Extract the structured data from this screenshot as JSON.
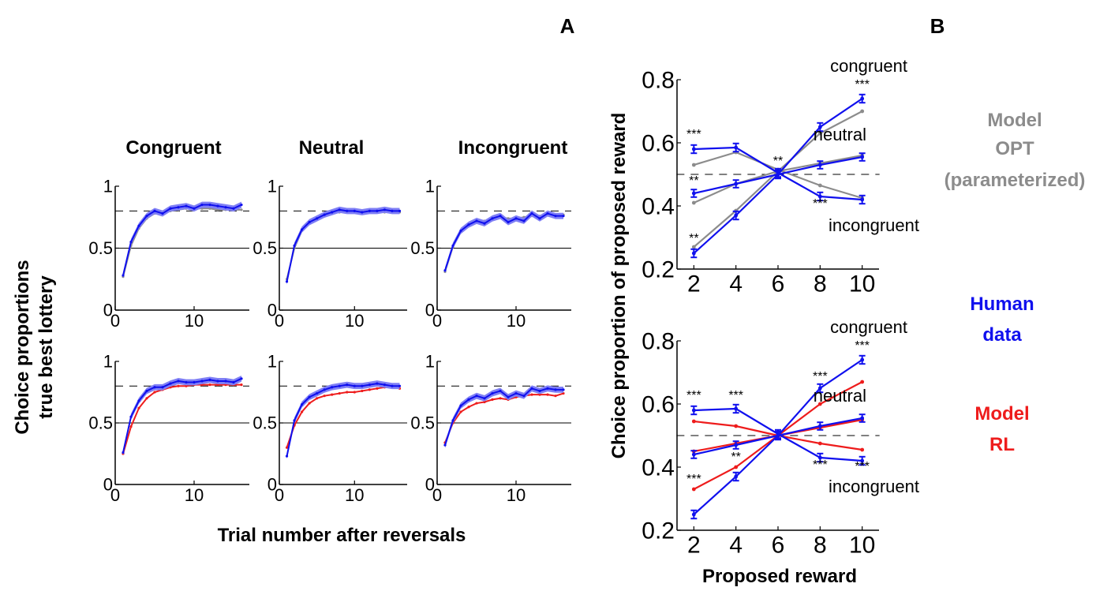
{
  "figure": {
    "panel_labels": {
      "a": "A",
      "b": "B"
    },
    "panel_a": {
      "column_titles": [
        "Congruent",
        "Neutral",
        "Incongruent"
      ],
      "ylabel_line1": "Choice proportions",
      "ylabel_line2": "true best lottery",
      "xlabel": "Trial number after reversals"
    },
    "panel_b": {
      "ylabel": "Choice proportion of proposed reward",
      "xlabel": "Proposed reward"
    },
    "legend": {
      "opt_line1": "Model",
      "opt_line2": "OPT",
      "opt_line3": "(parameterized)",
      "human_line1": "Human",
      "human_line2": "data",
      "rl_line1": "Model",
      "rl_line2": "RL"
    }
  },
  "colors": {
    "human": "#1010ee",
    "human_band": "#7f7ff5",
    "opt": "#8c8c8c",
    "rl": "#ee1c1c",
    "axis": "#000000"
  },
  "chart_data": [
    {
      "type": "line",
      "row": "top",
      "column": "Congruent",
      "x": [
        1,
        2,
        3,
        4,
        5,
        6,
        7,
        8,
        9,
        10,
        11,
        12,
        13,
        14,
        15,
        16
      ],
      "xlim": [
        0,
        17
      ],
      "ylim": [
        0,
        1
      ],
      "xticks": [
        0,
        10
      ],
      "xtick_labels": [
        "0",
        "10"
      ],
      "yticks": [
        0,
        0.5,
        1
      ],
      "ytick_labels": [
        "0",
        "0.5",
        "1"
      ],
      "reference_lines": [
        {
          "y": 0.5,
          "style": "solid"
        },
        {
          "y": 0.8,
          "style": "dashed"
        }
      ],
      "series": [
        {
          "role": "human",
          "values": [
            0.28,
            0.55,
            0.68,
            0.76,
            0.8,
            0.78,
            0.82,
            0.83,
            0.84,
            0.82,
            0.85,
            0.85,
            0.84,
            0.83,
            0.82,
            0.85
          ],
          "band": 0.025
        },
        {
          "role": "opt",
          "values": [
            0.27,
            0.52,
            0.66,
            0.74,
            0.78,
            0.79,
            0.8,
            0.81,
            0.82,
            0.82,
            0.82,
            0.82,
            0.81,
            0.81,
            0.81,
            0.81
          ]
        }
      ]
    },
    {
      "type": "line",
      "row": "top",
      "column": "Neutral",
      "x": [
        1,
        2,
        3,
        4,
        5,
        6,
        7,
        8,
        9,
        10,
        11,
        12,
        13,
        14,
        15,
        16
      ],
      "xlim": [
        0,
        17
      ],
      "ylim": [
        0,
        1
      ],
      "xticks": [
        0,
        10
      ],
      "xtick_labels": [
        "0",
        "10"
      ],
      "yticks": [
        0,
        0.5,
        1
      ],
      "ytick_labels": [
        "0",
        "0.5",
        "1"
      ],
      "reference_lines": [
        {
          "y": 0.5,
          "style": "solid"
        },
        {
          "y": 0.8,
          "style": "dashed"
        }
      ],
      "series": [
        {
          "role": "human",
          "values": [
            0.23,
            0.52,
            0.65,
            0.71,
            0.74,
            0.77,
            0.79,
            0.81,
            0.8,
            0.8,
            0.79,
            0.8,
            0.8,
            0.81,
            0.8,
            0.8
          ],
          "band": 0.025
        },
        {
          "role": "opt",
          "values": [
            0.25,
            0.5,
            0.64,
            0.7,
            0.74,
            0.76,
            0.78,
            0.79,
            0.79,
            0.79,
            0.79,
            0.79,
            0.79,
            0.79,
            0.79,
            0.79
          ]
        }
      ]
    },
    {
      "type": "line",
      "row": "top",
      "column": "Incongruent",
      "x": [
        1,
        2,
        3,
        4,
        5,
        6,
        7,
        8,
        9,
        10,
        11,
        12,
        13,
        14,
        15,
        16
      ],
      "xlim": [
        0,
        17
      ],
      "ylim": [
        0,
        1
      ],
      "xticks": [
        0,
        10
      ],
      "xtick_labels": [
        "0",
        "10"
      ],
      "yticks": [
        0,
        0.5,
        1
      ],
      "ytick_labels": [
        "0",
        "0.5",
        "1"
      ],
      "reference_lines": [
        {
          "y": 0.5,
          "style": "solid"
        },
        {
          "y": 0.8,
          "style": "dashed"
        }
      ],
      "series": [
        {
          "role": "human",
          "values": [
            0.32,
            0.52,
            0.64,
            0.69,
            0.72,
            0.7,
            0.74,
            0.76,
            0.71,
            0.74,
            0.72,
            0.78,
            0.74,
            0.78,
            0.76,
            0.76
          ],
          "band": 0.025
        },
        {
          "role": "opt",
          "values": [
            0.31,
            0.51,
            0.63,
            0.69,
            0.72,
            0.72,
            0.73,
            0.75,
            0.74,
            0.74,
            0.75,
            0.76,
            0.76,
            0.77,
            0.77,
            0.77
          ]
        }
      ]
    },
    {
      "type": "line",
      "row": "bottom",
      "column": "Congruent",
      "x": [
        1,
        2,
        3,
        4,
        5,
        6,
        7,
        8,
        9,
        10,
        11,
        12,
        13,
        14,
        15,
        16
      ],
      "xlim": [
        0,
        17
      ],
      "ylim": [
        0,
        1
      ],
      "xticks": [
        0,
        10
      ],
      "xtick_labels": [
        "0",
        "10"
      ],
      "yticks": [
        0,
        0.5,
        1
      ],
      "ytick_labels": [
        "0",
        "0.5",
        "1"
      ],
      "reference_lines": [
        {
          "y": 0.5,
          "style": "solid"
        },
        {
          "y": 0.8,
          "style": "dashed"
        }
      ],
      "series": [
        {
          "role": "human",
          "values": [
            0.26,
            0.55,
            0.68,
            0.76,
            0.79,
            0.79,
            0.82,
            0.84,
            0.83,
            0.83,
            0.84,
            0.85,
            0.84,
            0.84,
            0.83,
            0.86
          ],
          "band": 0.025
        },
        {
          "role": "rl",
          "values": [
            0.25,
            0.47,
            0.62,
            0.7,
            0.75,
            0.77,
            0.79,
            0.8,
            0.8,
            0.81,
            0.81,
            0.81,
            0.81,
            0.81,
            0.81,
            0.81
          ]
        }
      ]
    },
    {
      "type": "line",
      "row": "bottom",
      "column": "Neutral",
      "x": [
        1,
        2,
        3,
        4,
        5,
        6,
        7,
        8,
        9,
        10,
        11,
        12,
        13,
        14,
        15,
        16
      ],
      "xlim": [
        0,
        17
      ],
      "ylim": [
        0,
        1
      ],
      "xticks": [
        0,
        10
      ],
      "xtick_labels": [
        "0",
        "10"
      ],
      "yticks": [
        0,
        0.5,
        1
      ],
      "ytick_labels": [
        "0",
        "0.5",
        "1"
      ],
      "reference_lines": [
        {
          "y": 0.5,
          "style": "solid"
        },
        {
          "y": 0.8,
          "style": "dashed"
        }
      ],
      "series": [
        {
          "role": "human",
          "values": [
            0.23,
            0.52,
            0.65,
            0.71,
            0.74,
            0.77,
            0.79,
            0.8,
            0.81,
            0.8,
            0.8,
            0.81,
            0.82,
            0.81,
            0.8,
            0.8
          ],
          "band": 0.025
        },
        {
          "role": "rl",
          "values": [
            0.3,
            0.48,
            0.59,
            0.66,
            0.7,
            0.72,
            0.73,
            0.74,
            0.75,
            0.75,
            0.76,
            0.77,
            0.78,
            0.79,
            0.79,
            0.78
          ]
        }
      ]
    },
    {
      "type": "line",
      "row": "bottom",
      "column": "Incongruent",
      "x": [
        1,
        2,
        3,
        4,
        5,
        6,
        7,
        8,
        9,
        10,
        11,
        12,
        13,
        14,
        15,
        16
      ],
      "xlim": [
        0,
        17
      ],
      "ylim": [
        0,
        1
      ],
      "xticks": [
        0,
        10
      ],
      "xtick_labels": [
        "0",
        "10"
      ],
      "yticks": [
        0,
        0.5,
        1
      ],
      "ytick_labels": [
        "0",
        "0.5",
        "1"
      ],
      "reference_lines": [
        {
          "y": 0.5,
          "style": "solid"
        },
        {
          "y": 0.8,
          "style": "dashed"
        }
      ],
      "series": [
        {
          "role": "human",
          "values": [
            0.32,
            0.52,
            0.64,
            0.69,
            0.72,
            0.7,
            0.74,
            0.76,
            0.71,
            0.74,
            0.72,
            0.78,
            0.76,
            0.78,
            0.77,
            0.77
          ],
          "band": 0.025
        },
        {
          "role": "rl",
          "values": [
            0.34,
            0.5,
            0.59,
            0.63,
            0.66,
            0.67,
            0.69,
            0.7,
            0.69,
            0.71,
            0.72,
            0.73,
            0.73,
            0.73,
            0.72,
            0.74
          ]
        }
      ]
    },
    {
      "type": "line",
      "row": "top",
      "panel": "B",
      "x": [
        2,
        4,
        6,
        8,
        10
      ],
      "xlim": [
        1.2,
        10.8
      ],
      "ylim": [
        0.2,
        0.8
      ],
      "xticks": [
        2,
        4,
        6,
        8,
        10
      ],
      "xtick_labels": [
        "2",
        "4",
        "6",
        "8",
        "10"
      ],
      "yticks": [
        0.2,
        0.4,
        0.6,
        0.8
      ],
      "ytick_labels": [
        "0.2",
        "0.4",
        "0.6",
        "0.8"
      ],
      "reference_lines": [
        {
          "y": 0.5,
          "style": "dashed"
        }
      ],
      "condition_labels": [
        "congruent",
        "neutral",
        "incongruent"
      ],
      "series": [
        {
          "role": "human",
          "condition": "congruent",
          "values": [
            0.25,
            0.37,
            0.5,
            0.65,
            0.74
          ],
          "err": 0.013
        },
        {
          "role": "human",
          "condition": "neutral",
          "values": [
            0.44,
            0.47,
            0.5,
            0.53,
            0.555
          ],
          "err": 0.012
        },
        {
          "role": "human",
          "condition": "incongruent",
          "values": [
            0.58,
            0.585,
            0.505,
            0.43,
            0.42
          ],
          "err": 0.013
        },
        {
          "role": "opt",
          "condition": "congruent",
          "values": [
            0.27,
            0.385,
            0.51,
            0.63,
            0.7
          ]
        },
        {
          "role": "opt",
          "condition": "neutral",
          "values": [
            0.41,
            0.47,
            0.51,
            0.535,
            0.56
          ]
        },
        {
          "role": "opt",
          "condition": "incongruent",
          "values": [
            0.53,
            0.57,
            0.515,
            0.465,
            0.425
          ]
        }
      ],
      "annotations": [
        {
          "x": 2,
          "y": 0.615,
          "text": "***"
        },
        {
          "x": 2,
          "y": 0.467,
          "text": "**"
        },
        {
          "x": 2,
          "y": 0.285,
          "text": "**"
        },
        {
          "x": 6,
          "y": 0.53,
          "text": "**"
        },
        {
          "x": 8,
          "y": 0.395,
          "text": "***"
        },
        {
          "x": 10,
          "y": 0.772,
          "text": "***"
        }
      ]
    },
    {
      "type": "line",
      "row": "bottom",
      "panel": "B",
      "x": [
        2,
        4,
        6,
        8,
        10
      ],
      "xlim": [
        1.2,
        10.8
      ],
      "ylim": [
        0.2,
        0.8
      ],
      "xticks": [
        2,
        4,
        6,
        8,
        10
      ],
      "xtick_labels": [
        "2",
        "4",
        "6",
        "8",
        "10"
      ],
      "yticks": [
        0.2,
        0.4,
        0.6,
        0.8
      ],
      "ytick_labels": [
        "0.2",
        "0.4",
        "0.6",
        "0.8"
      ],
      "reference_lines": [
        {
          "y": 0.5,
          "style": "dashed"
        }
      ],
      "condition_labels": [
        "congruent",
        "neutral",
        "incongruent"
      ],
      "series": [
        {
          "role": "human",
          "condition": "congruent",
          "values": [
            0.25,
            0.37,
            0.5,
            0.65,
            0.74
          ],
          "err": 0.013
        },
        {
          "role": "human",
          "condition": "neutral",
          "values": [
            0.44,
            0.47,
            0.5,
            0.53,
            0.555
          ],
          "err": 0.012
        },
        {
          "role": "human",
          "condition": "incongruent",
          "values": [
            0.58,
            0.585,
            0.505,
            0.43,
            0.42
          ],
          "err": 0.013
        },
        {
          "role": "rl",
          "condition": "congruent",
          "values": [
            0.33,
            0.4,
            0.5,
            0.6,
            0.67
          ]
        },
        {
          "role": "rl",
          "condition": "neutral",
          "values": [
            0.45,
            0.475,
            0.5,
            0.525,
            0.55
          ]
        },
        {
          "role": "rl",
          "condition": "incongruent",
          "values": [
            0.545,
            0.53,
            0.5,
            0.475,
            0.455
          ]
        }
      ],
      "annotations": [
        {
          "x": 2,
          "y": 0.615,
          "text": "***"
        },
        {
          "x": 4,
          "y": 0.615,
          "text": "***"
        },
        {
          "x": 4,
          "y": 0.42,
          "text": "**"
        },
        {
          "x": 2,
          "y": 0.35,
          "text": "***"
        },
        {
          "x": 8,
          "y": 0.675,
          "text": "***"
        },
        {
          "x": 8,
          "y": 0.395,
          "text": "***"
        },
        {
          "x": 10,
          "y": 0.772,
          "text": "***"
        },
        {
          "x": 10,
          "y": 0.39,
          "text": "***"
        }
      ]
    }
  ]
}
